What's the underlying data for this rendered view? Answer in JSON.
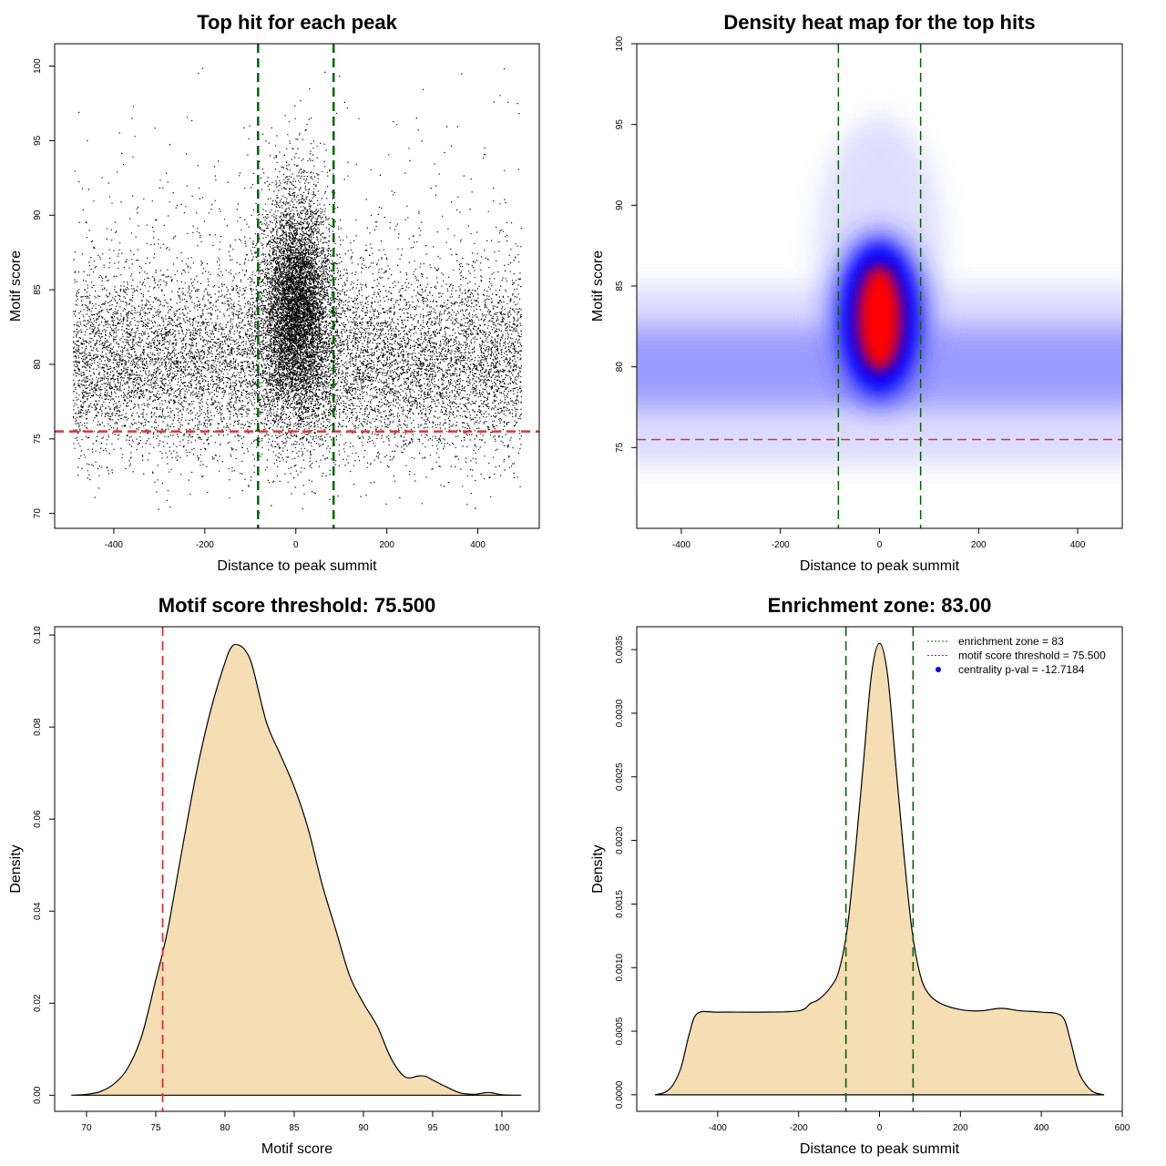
{
  "chart_data": [
    {
      "type": "scatter",
      "title": "Top hit for each peak",
      "xlabel": "Distance to peak summit",
      "ylabel": "Motif score",
      "xlim": [
        -530,
        535
      ],
      "ylim": [
        69,
        101.5
      ],
      "xticks": [
        -400,
        -200,
        0,
        200,
        400
      ],
      "yticks": [
        70,
        75,
        80,
        85,
        90,
        95,
        100
      ],
      "xtick_labels": [
        "-400",
        "-200",
        "0",
        "200",
        "400"
      ],
      "ytick_labels": [
        "70",
        "75",
        "80",
        "85",
        "90",
        "95",
        "100"
      ],
      "point_color": "#000000",
      "hlines": [
        {
          "y": 75.5,
          "color": "#dd3333",
          "style": "dashed"
        }
      ],
      "vlines": [
        {
          "x": -83,
          "color": "#006400",
          "style": "dashed"
        },
        {
          "x": 83,
          "color": "#006400",
          "style": "dashed"
        }
      ],
      "point_sample": {
        "x_range": [
          -490,
          495
        ],
        "background_y_center": 80,
        "central_x_center": 0,
        "central_y_center": 84,
        "approx_points": 18000
      }
    },
    {
      "type": "heatmap",
      "title": "Density heat map for the top hits",
      "xlabel": "Distance to peak summit",
      "ylabel": "Motif score",
      "xlim": [
        -490,
        490
      ],
      "ylim": [
        70,
        100
      ],
      "xticks": [
        -400,
        -200,
        0,
        200,
        400
      ],
      "yticks": [
        75,
        80,
        85,
        90,
        95,
        100
      ],
      "xtick_labels": [
        "-400",
        "-200",
        "0",
        "200",
        "400"
      ],
      "ytick_labels": [
        "75",
        "80",
        "85",
        "90",
        "95",
        "100"
      ],
      "colors": {
        "low": "#ffffff",
        "mid": "#0000ff",
        "high": "#ff0000"
      },
      "hlines": [
        {
          "y": 75.5,
          "color": "#dd3333",
          "style": "dashed"
        }
      ],
      "vlines": [
        {
          "x": -83,
          "color": "#006400",
          "style": "dashed"
        },
        {
          "x": 83,
          "color": "#006400",
          "style": "dashed"
        }
      ],
      "peak": {
        "x": 0,
        "y": 83
      }
    },
    {
      "type": "area",
      "title": "Motif score threshold: 75.500",
      "xlabel": "Motif score",
      "ylabel": "Density",
      "xlim": [
        67.7,
        102.7
      ],
      "ylim": [
        -0.0035,
        0.1018
      ],
      "xticks": [
        70,
        75,
        80,
        85,
        90,
        95,
        100
      ],
      "yticks": [
        0,
        0.02,
        0.04,
        0.06,
        0.08,
        0.1
      ],
      "xtick_labels": [
        "70",
        "75",
        "80",
        "85",
        "90",
        "95",
        "100"
      ],
      "ytick_labels": [
        "0.00",
        "0.02",
        "0.04",
        "0.06",
        "0.08",
        "0.10"
      ],
      "fill_color": "#f5deb3",
      "vlines": [
        {
          "x": 75.5,
          "color": "#dd3333",
          "style": "dashed"
        }
      ],
      "x": [
        68.9,
        70,
        71,
        72,
        73,
        74,
        75,
        75.5,
        76,
        77,
        78,
        79,
        80,
        80.5,
        81,
        81.5,
        82,
        83,
        84,
        85,
        86,
        87,
        88,
        89,
        90,
        91,
        92,
        93,
        94,
        94.5,
        95,
        96,
        97,
        98,
        98.5,
        99,
        99.5,
        100,
        101.4
      ],
      "y": [
        0.0,
        0.0002,
        0.0008,
        0.0025,
        0.006,
        0.013,
        0.025,
        0.031,
        0.038,
        0.055,
        0.071,
        0.084,
        0.094,
        0.0975,
        0.0978,
        0.0965,
        0.093,
        0.081,
        0.074,
        0.067,
        0.058,
        0.046,
        0.036,
        0.026,
        0.02,
        0.015,
        0.008,
        0.004,
        0.0042,
        0.0041,
        0.0033,
        0.0018,
        0.0005,
        0.0002,
        0.0004,
        0.0006,
        0.0004,
        0.0001,
        0.0
      ]
    },
    {
      "type": "area",
      "title": "Enrichment zone: 83.00",
      "xlabel": "Distance to peak summit",
      "ylabel": "Density",
      "xlim": [
        -600,
        600
      ],
      "ylim": [
        -0.00013,
        0.00368
      ],
      "xticks": [
        -400,
        -200,
        0,
        200,
        400,
        600
      ],
      "yticks": [
        0,
        0.0005,
        0.001,
        0.0015,
        0.002,
        0.0025,
        0.003,
        0.0035
      ],
      "xtick_labels": [
        "-400",
        "-200",
        "0",
        "200",
        "400",
        "600"
      ],
      "ytick_labels": [
        "0.0000",
        "0.0005",
        "0.0010",
        "0.0015",
        "0.0020",
        "0.0025",
        "0.0030",
        "0.0035"
      ],
      "fill_color": "#f5deb3",
      "vlines": [
        {
          "x": -83,
          "color": "#006400",
          "style": "dashed"
        },
        {
          "x": 83,
          "color": "#006400",
          "style": "dashed"
        }
      ],
      "x": [
        -555,
        -530,
        -510,
        -490,
        -470,
        -450,
        -400,
        -300,
        -200,
        -170,
        -150,
        -120,
        -100,
        -80,
        -60,
        -40,
        -20,
        0,
        20,
        40,
        60,
        80,
        100,
        120,
        150,
        200,
        250,
        300,
        350,
        400,
        450,
        470,
        490,
        510,
        530,
        555
      ],
      "y": [
        0.0,
        2e-05,
        8e-05,
        0.00022,
        0.00048,
        0.00064,
        0.00065,
        0.00065,
        0.00066,
        0.00072,
        0.00075,
        0.00085,
        0.00098,
        0.0013,
        0.0019,
        0.0026,
        0.0033,
        0.00355,
        0.0033,
        0.0026,
        0.0019,
        0.0013,
        0.00095,
        0.0008,
        0.00072,
        0.00067,
        0.00066,
        0.00068,
        0.00066,
        0.00065,
        0.00062,
        0.00045,
        0.0002,
        8e-05,
        2e-05,
        0.0
      ],
      "legend": {
        "placement": "top-right",
        "items": [
          {
            "label": "enrichment zone = 83",
            "color": "#006400",
            "kind": "line"
          },
          {
            "label": "motif score threshold = 75.500",
            "color": "#ff0000",
            "kind": "line"
          },
          {
            "label": "centrality p-val = -12.7184",
            "color": "#0000ff",
            "kind": "point"
          }
        ]
      }
    }
  ]
}
